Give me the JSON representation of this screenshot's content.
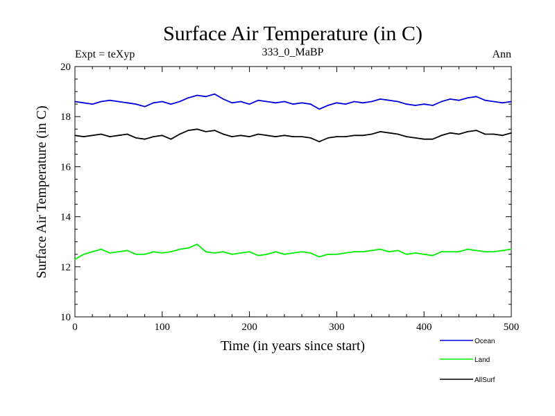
{
  "chart_data": {
    "type": "line",
    "title": "Surface Air Temperature (in C)",
    "subtitle_left": "Expt = teXyp",
    "subtitle_center": "333_0_MaBP",
    "subtitle_right": "Ann",
    "xlabel": "Time (in years since start)",
    "ylabel": "Surface Air Temperature (in C)",
    "xlim": [
      0,
      500
    ],
    "ylim": [
      10,
      20
    ],
    "x_ticks": [
      0,
      100,
      200,
      300,
      400,
      500
    ],
    "y_ticks": [
      10,
      12,
      14,
      16,
      18,
      20
    ],
    "grid": false,
    "legend_position": "bottom-right, below plot",
    "x": [
      0,
      10,
      20,
      30,
      40,
      50,
      60,
      70,
      80,
      90,
      100,
      110,
      120,
      130,
      140,
      150,
      160,
      170,
      180,
      190,
      200,
      210,
      220,
      230,
      240,
      250,
      260,
      270,
      280,
      290,
      300,
      310,
      320,
      330,
      340,
      350,
      360,
      370,
      380,
      390,
      400,
      410,
      420,
      430,
      440,
      450,
      460,
      470,
      480,
      490,
      500
    ],
    "series": [
      {
        "name": "Ocean",
        "color": "#0000dd",
        "values": [
          18.6,
          18.55,
          18.5,
          18.6,
          18.65,
          18.6,
          18.55,
          18.5,
          18.4,
          18.55,
          18.6,
          18.5,
          18.6,
          18.75,
          18.85,
          18.8,
          18.9,
          18.7,
          18.55,
          18.6,
          18.5,
          18.65,
          18.6,
          18.55,
          18.6,
          18.5,
          18.55,
          18.5,
          18.3,
          18.45,
          18.55,
          18.5,
          18.6,
          18.55,
          18.6,
          18.7,
          18.65,
          18.6,
          18.5,
          18.45,
          18.5,
          18.45,
          18.6,
          18.7,
          18.65,
          18.75,
          18.8,
          18.65,
          18.6,
          18.55,
          18.6
        ]
      },
      {
        "name": "Land",
        "color": "#00ee00",
        "values": [
          12.3,
          12.5,
          12.6,
          12.7,
          12.55,
          12.6,
          12.65,
          12.5,
          12.5,
          12.6,
          12.55,
          12.6,
          12.7,
          12.75,
          12.9,
          12.6,
          12.55,
          12.6,
          12.5,
          12.55,
          12.6,
          12.45,
          12.5,
          12.6,
          12.5,
          12.55,
          12.6,
          12.55,
          12.4,
          12.5,
          12.5,
          12.55,
          12.6,
          12.6,
          12.65,
          12.7,
          12.6,
          12.65,
          12.5,
          12.55,
          12.5,
          12.45,
          12.6,
          12.6,
          12.6,
          12.7,
          12.65,
          12.6,
          12.6,
          12.65,
          12.7
        ]
      },
      {
        "name": "AllSurf",
        "color": "#000000",
        "values": [
          17.25,
          17.2,
          17.25,
          17.3,
          17.2,
          17.25,
          17.3,
          17.15,
          17.1,
          17.2,
          17.25,
          17.1,
          17.3,
          17.45,
          17.5,
          17.4,
          17.45,
          17.3,
          17.2,
          17.25,
          17.2,
          17.3,
          17.25,
          17.2,
          17.25,
          17.2,
          17.2,
          17.15,
          17.0,
          17.15,
          17.2,
          17.2,
          17.25,
          17.25,
          17.3,
          17.4,
          17.35,
          17.3,
          17.2,
          17.15,
          17.1,
          17.1,
          17.25,
          17.35,
          17.3,
          17.4,
          17.45,
          17.3,
          17.3,
          17.25,
          17.35
        ]
      }
    ]
  }
}
